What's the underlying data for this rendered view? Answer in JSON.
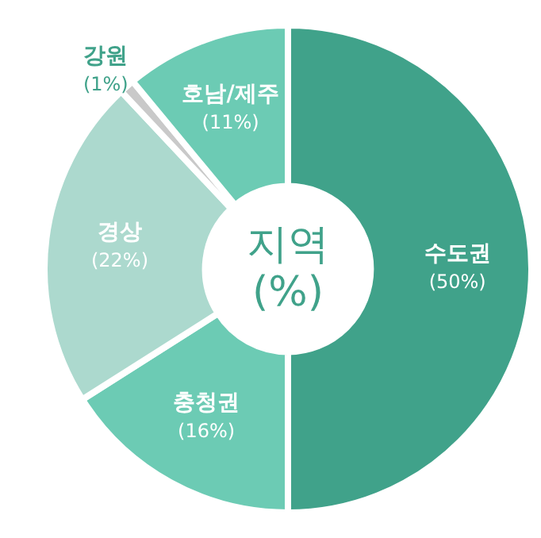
{
  "chart_data": {
    "type": "donut",
    "title": "지역",
    "subtitle": "(%)",
    "categories": [
      "수도권",
      "충청권",
      "경상",
      "강원",
      "호남/제주"
    ],
    "values": [
      50,
      16,
      22,
      1,
      11
    ],
    "value_labels": [
      "(50%)",
      "(16%)",
      "(22%)",
      "(1%)",
      "(11%)"
    ],
    "colors": [
      "#40a28a",
      "#6ccbb4",
      "#acd9ce",
      "#c9c9c9",
      "#6ccbb4"
    ],
    "legend": false
  }
}
